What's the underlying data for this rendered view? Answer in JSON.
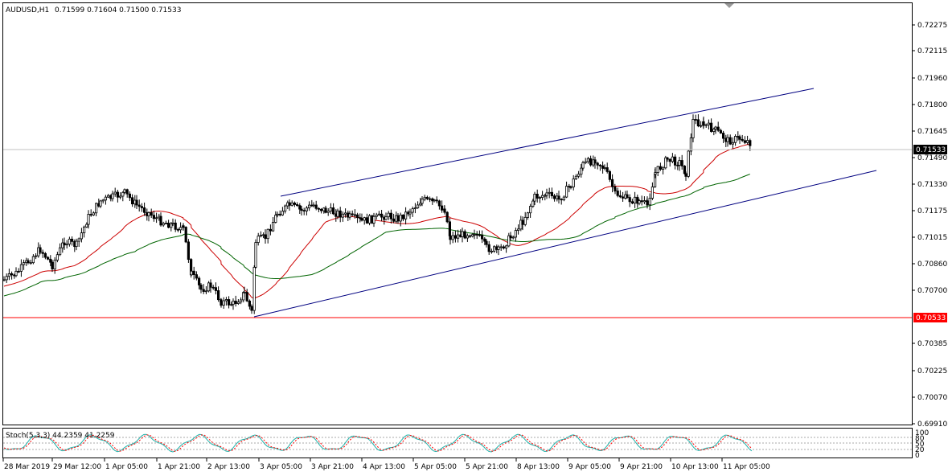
{
  "header": {
    "symbol": "AUDUSD,H1",
    "ohlc": "0.71599 0.71604 0.71500 0.71533"
  },
  "stoch": {
    "label": "Stoch(5,3,3) 44.2359 41.2259",
    "scale": [
      "100",
      "80",
      "50",
      "20",
      "0"
    ]
  },
  "price_axis": {
    "ticks": [
      "0.72275",
      "0.72115",
      "0.71960",
      "0.71800",
      "0.71645",
      "0.71490",
      "0.71330",
      "0.71175",
      "0.71015",
      "0.70860",
      "0.70700",
      "0.70385",
      "0.70225",
      "0.70070",
      "0.69910"
    ],
    "current_price": "0.71533",
    "level_price": "0.70533"
  },
  "time_axis": {
    "labels": [
      "28 Mar 2019",
      "29 Mar 12:00",
      "1 Apr 05:00",
      "1 Apr 21:00",
      "2 Apr 13:00",
      "3 Apr 05:00",
      "3 Apr 21:00",
      "4 Apr 13:00",
      "5 Apr 05:00",
      "5 Apr 21:00",
      "8 Apr 13:00",
      "9 Apr 05:00",
      "9 Apr 21:00",
      "10 Apr 13:00",
      "11 Apr 05:00"
    ]
  },
  "colors": {
    "bull": "#ffffff",
    "bear": "#000000",
    "ma_fast": "#cc0000",
    "ma_slow": "#006400",
    "channel": "#000080",
    "level_line": "#ff0000",
    "stoch_main": "#20b2aa",
    "stoch_signal": "#ff0000"
  },
  "chart_data": {
    "type": "candlestick",
    "symbol": "AUDUSD",
    "timeframe": "H1",
    "ylim": [
      0.6991,
      0.7235
    ],
    "last": {
      "open": 0.71599,
      "high": 0.71604,
      "low": 0.715,
      "close": 0.71533
    },
    "horizontal_level": 0.70533,
    "channel_upper": {
      "from": [
        "3 Apr 05:00",
        0.7122
      ],
      "to": [
        "11 Apr 05:00",
        0.7191
      ]
    },
    "channel_lower": {
      "from": [
        "3 Apr 05:00",
        0.7053
      ],
      "to": [
        "11 Apr 05:00",
        0.7141
      ]
    },
    "stochastic": {
      "k": 44.2359,
      "d": 41.2259,
      "params": [
        5,
        3,
        3
      ]
    }
  }
}
